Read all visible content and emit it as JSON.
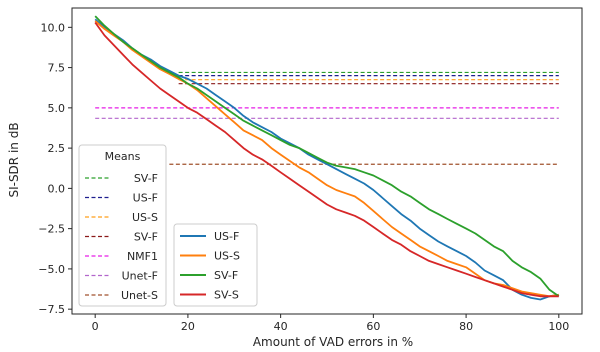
{
  "chart_data": {
    "type": "line",
    "xlabel": "Amount of VAD errors in %",
    "ylabel": "SI-SDR in dB",
    "xlim": [
      -5,
      105
    ],
    "ylim": [
      -7.8,
      11.2
    ],
    "xticks": [
      0,
      20,
      40,
      60,
      80,
      100
    ],
    "yticks": [
      -7.5,
      -5.0,
      -2.5,
      0.0,
      2.5,
      5.0,
      7.5,
      10.0
    ],
    "xtick_labels": [
      "0",
      "20",
      "40",
      "60",
      "80",
      "100"
    ],
    "ytick_labels": [
      "−7.5",
      "−5.0",
      "−2.5",
      "0.0",
      "2.5",
      "5.0",
      "7.5",
      "10.0"
    ],
    "grid": false,
    "means_legend": {
      "title": "Means",
      "placement": "center-left",
      "entries": [
        {
          "name": "SV-F",
          "color": "#2ca02c",
          "value": 7.2,
          "x_start": 18
        },
        {
          "name": "US-F",
          "color": "#1f1f8f",
          "value": 7.0,
          "x_start": 18
        },
        {
          "name": "US-S",
          "color": "#ff9f1a",
          "value": 6.75,
          "x_start": 18
        },
        {
          "name": "SV-F",
          "color": "#8b1a1a",
          "value": 6.5,
          "x_start": 18
        },
        {
          "name": "NMF1",
          "color": "#e61ee6",
          "value": 5.0,
          "x_start": 0
        },
        {
          "name": "Unet-F",
          "color": "#b266cc",
          "value": 4.35,
          "x_start": 0
        },
        {
          "name": "Unet-S",
          "color": "#a0522d",
          "value": 1.5,
          "x_start": 16
        }
      ]
    },
    "series_legend": {
      "placement": "lower-left",
      "entries": [
        "US-F",
        "US-S",
        "SV-F",
        "SV-S"
      ]
    },
    "series": [
      {
        "name": "US-F",
        "color": "#1f77b4",
        "x": [
          0,
          2,
          4,
          6,
          8,
          10,
          12,
          14,
          16,
          18,
          20,
          22,
          24,
          26,
          28,
          30,
          32,
          34,
          36,
          38,
          40,
          42,
          44,
          46,
          48,
          50,
          52,
          54,
          56,
          58,
          60,
          62,
          64,
          66,
          68,
          70,
          72,
          74,
          76,
          78,
          80,
          82,
          84,
          86,
          88,
          90,
          92,
          94,
          96,
          98,
          100
        ],
        "y": [
          10.5,
          10.0,
          9.6,
          9.2,
          8.7,
          8.3,
          8.0,
          7.6,
          7.3,
          7.0,
          6.8,
          6.5,
          6.2,
          5.8,
          5.4,
          5.0,
          4.5,
          4.1,
          3.8,
          3.5,
          3.1,
          2.8,
          2.5,
          2.1,
          1.8,
          1.5,
          1.2,
          0.9,
          0.6,
          0.3,
          -0.1,
          -0.6,
          -1.1,
          -1.6,
          -2.0,
          -2.5,
          -2.9,
          -3.3,
          -3.6,
          -3.9,
          -4.2,
          -4.6,
          -5.1,
          -5.4,
          -5.7,
          -6.3,
          -6.6,
          -6.8,
          -6.9,
          -6.7,
          -6.6
        ]
      },
      {
        "name": "US-S",
        "color": "#ff7f0e",
        "x": [
          0,
          2,
          4,
          6,
          8,
          10,
          12,
          14,
          16,
          18,
          20,
          22,
          24,
          26,
          28,
          30,
          32,
          34,
          36,
          38,
          40,
          42,
          44,
          46,
          48,
          50,
          52,
          54,
          56,
          58,
          60,
          62,
          64,
          66,
          68,
          70,
          72,
          74,
          76,
          78,
          80,
          82,
          84,
          86,
          88,
          90,
          92,
          94,
          96,
          98,
          100
        ],
        "y": [
          10.4,
          9.9,
          9.5,
          9.1,
          8.6,
          8.2,
          7.8,
          7.4,
          7.1,
          6.8,
          6.5,
          6.1,
          5.6,
          5.1,
          4.6,
          4.1,
          3.6,
          3.3,
          3.0,
          2.5,
          2.1,
          1.7,
          1.3,
          1.0,
          0.6,
          0.2,
          -0.1,
          -0.3,
          -0.5,
          -0.9,
          -1.4,
          -1.9,
          -2.4,
          -2.8,
          -3.2,
          -3.6,
          -3.9,
          -4.2,
          -4.5,
          -4.7,
          -4.9,
          -5.3,
          -5.7,
          -5.9,
          -6.0,
          -6.2,
          -6.4,
          -6.5,
          -6.6,
          -6.7,
          -6.6
        ]
      },
      {
        "name": "SV-F",
        "color": "#2ca02c",
        "x": [
          0,
          2,
          4,
          6,
          8,
          10,
          12,
          14,
          16,
          18,
          20,
          22,
          24,
          26,
          28,
          30,
          32,
          34,
          36,
          38,
          40,
          42,
          44,
          46,
          48,
          50,
          52,
          54,
          56,
          58,
          60,
          62,
          64,
          66,
          68,
          70,
          72,
          74,
          76,
          78,
          80,
          82,
          84,
          86,
          88,
          90,
          92,
          94,
          96,
          98,
          100
        ],
        "y": [
          10.7,
          10.1,
          9.6,
          9.1,
          8.7,
          8.3,
          7.9,
          7.5,
          7.2,
          6.9,
          6.5,
          6.2,
          5.8,
          5.4,
          5.0,
          4.6,
          4.2,
          3.9,
          3.6,
          3.3,
          3.0,
          2.7,
          2.5,
          2.2,
          1.9,
          1.6,
          1.4,
          1.3,
          1.2,
          1.0,
          0.8,
          0.5,
          0.2,
          -0.2,
          -0.5,
          -0.9,
          -1.3,
          -1.6,
          -1.9,
          -2.2,
          -2.5,
          -2.8,
          -3.2,
          -3.6,
          -3.9,
          -4.5,
          -4.9,
          -5.2,
          -5.6,
          -6.3,
          -6.7
        ]
      },
      {
        "name": "SV-S",
        "color": "#d62728",
        "x": [
          0,
          2,
          4,
          6,
          8,
          10,
          12,
          14,
          16,
          18,
          20,
          22,
          24,
          26,
          28,
          30,
          32,
          34,
          36,
          38,
          40,
          42,
          44,
          46,
          48,
          50,
          52,
          54,
          56,
          58,
          60,
          62,
          64,
          66,
          68,
          70,
          72,
          74,
          76,
          78,
          80,
          82,
          84,
          86,
          88,
          90,
          92,
          94,
          96,
          98,
          100
        ],
        "y": [
          10.3,
          9.5,
          8.9,
          8.3,
          7.7,
          7.2,
          6.7,
          6.2,
          5.8,
          5.4,
          5.0,
          4.7,
          4.3,
          3.9,
          3.5,
          3.0,
          2.5,
          2.1,
          1.8,
          1.4,
          1.0,
          0.6,
          0.2,
          -0.2,
          -0.6,
          -1.0,
          -1.3,
          -1.5,
          -1.7,
          -2.0,
          -2.4,
          -2.8,
          -3.2,
          -3.5,
          -3.9,
          -4.2,
          -4.5,
          -4.7,
          -4.9,
          -5.1,
          -5.3,
          -5.5,
          -5.7,
          -5.9,
          -6.1,
          -6.3,
          -6.5,
          -6.6,
          -6.7,
          -6.7,
          -6.7
        ]
      }
    ]
  }
}
